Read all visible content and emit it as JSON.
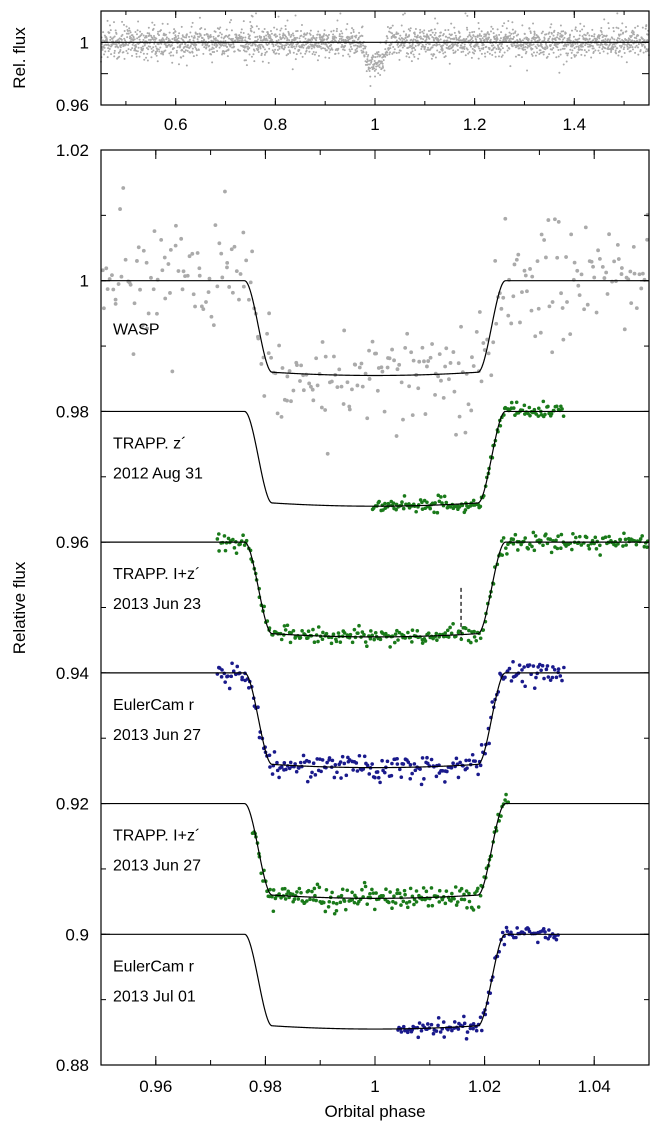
{
  "chart_data": [
    {
      "type": "scatter",
      "panel": "top",
      "ylabel": "Rel. flux",
      "xlim": [
        0.45,
        1.55
      ],
      "ylim": [
        0.96,
        1.02
      ],
      "xticks": [
        "0.6",
        "0.8",
        "1",
        "1.2",
        "1.4"
      ],
      "xtick_values": [
        0.6,
        0.8,
        1.0,
        1.2,
        1.4
      ],
      "yticks": [
        "1",
        "0.96"
      ],
      "ytick_values": [
        1.0,
        0.96
      ],
      "series": [
        {
          "color": "#aaaaaa",
          "baseline": 1.0,
          "scatter": 0.006,
          "transit_center": 1.0,
          "transit_halfwidth": 0.025,
          "transit_depth": 0.014
        }
      ],
      "model_flux": 1.0
    },
    {
      "type": "scatter",
      "panel": "main",
      "xlabel": "Orbital phase",
      "ylabel": "Relative flux",
      "xlim": [
        0.95,
        1.05
      ],
      "ylim": [
        0.88,
        1.02
      ],
      "xticks": [
        "0.96",
        "0.98",
        "1",
        "1.02",
        "1.04"
      ],
      "xtick_values": [
        0.96,
        0.98,
        1.0,
        1.02,
        1.04
      ],
      "yticks": [
        "1.02",
        "1",
        "0.98",
        "0.96",
        "0.94",
        "0.92",
        "0.9",
        "0.88"
      ],
      "ytick_values": [
        1.02,
        1.0,
        0.98,
        0.96,
        0.94,
        0.92,
        0.9,
        0.88
      ],
      "transit_model": {
        "t1": 0.9762,
        "t2": 0.9812,
        "t3": 1.0188,
        "t4": 1.0238,
        "depth": 0.014,
        "limb_darkening": 0.0005
      },
      "light_curves": [
        {
          "label": [
            "WASP"
          ],
          "baseline": 1.0,
          "color": "#aaaaaa",
          "phase_range": [
            0.95,
            1.05
          ],
          "n_points": 300,
          "scatter": 0.0045
        },
        {
          "label": [
            "TRAPP. z´",
            "2012 Aug 31"
          ],
          "baseline": 0.98,
          "color": "#1a7a1a",
          "phase_range": [
            0.9995,
            1.0345
          ],
          "n_points": 150,
          "scatter": 0.0006
        },
        {
          "label": [
            "TRAPP. I+z´",
            "2013 Jun 23"
          ],
          "baseline": 0.96,
          "color": "#1a7a1a",
          "phase_range": [
            0.971,
            1.05
          ],
          "n_points": 300,
          "scatter": 0.0006
        },
        {
          "label": [
            "EulerCam r",
            "2013 Jun 27"
          ],
          "baseline": 0.94,
          "color": "#1a1a8c",
          "phase_range": [
            0.971,
            1.0345
          ],
          "n_points": 240,
          "scatter": 0.0009
        },
        {
          "label": [
            "TRAPP. I+z´",
            "2013 Jun 27"
          ],
          "baseline": 0.92,
          "color": "#1a7a1a",
          "phase_range": [
            0.9775,
            1.0245
          ],
          "n_points": 200,
          "scatter": 0.0008
        },
        {
          "label": [
            "EulerCam r",
            "2013 Jul 01"
          ],
          "baseline": 0.9,
          "color": "#1a1a8c",
          "phase_range": [
            1.004,
            1.0335
          ],
          "n_points": 110,
          "scatter": 0.0006
        }
      ],
      "annotation": {
        "type": "dashed-vertical-line",
        "x": 1.0157,
        "y_range": [
          0.9453,
          0.953
        ]
      }
    }
  ]
}
